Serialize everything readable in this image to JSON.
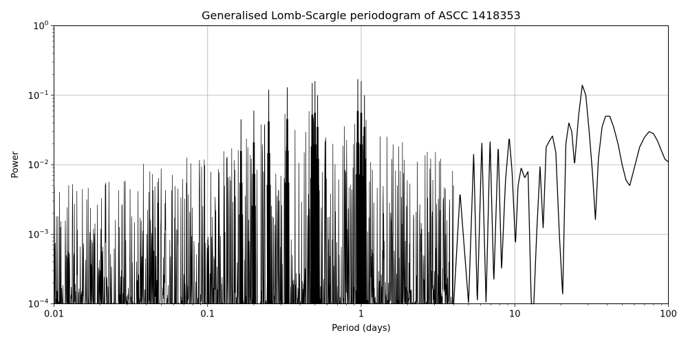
{
  "chart_data": {
    "type": "line",
    "title": "Generalised Lomb-Scargle periodogram of ASCC 1418353",
    "xlabel": "Period (days)",
    "ylabel": "Power",
    "xscale": "log",
    "yscale": "log",
    "xlim": [
      0.01,
      100
    ],
    "ylim": [
      0.0001,
      1
    ],
    "grid": true,
    "legend": "none",
    "line_color": "#000000",
    "grid_color": "#b0b0b0",
    "x_ticks": [
      {
        "value": 0.01,
        "label": "0.01"
      },
      {
        "value": 0.1,
        "label": "0.1"
      },
      {
        "value": 1,
        "label": "1"
      },
      {
        "value": 10,
        "label": "10"
      },
      {
        "value": 100,
        "label": "100"
      }
    ],
    "y_ticks": [
      {
        "value": 0.0001,
        "base": "10",
        "exp": "−4"
      },
      {
        "value": 0.001,
        "base": "10",
        "exp": "−3"
      },
      {
        "value": 0.01,
        "base": "10",
        "exp": "−2"
      },
      {
        "value": 0.1,
        "base": "10",
        "exp": "−1"
      },
      {
        "value": 1,
        "base": "10",
        "exp": "0"
      }
    ],
    "series": [
      {
        "style": "noisy-envelope",
        "x": [
          0.01,
          0.02,
          0.04,
          0.06,
          0.1,
          0.15,
          0.2,
          0.25,
          0.3,
          0.35,
          0.4,
          0.5,
          0.6,
          0.7,
          0.8,
          1.0,
          1.2,
          1.5,
          2.0,
          2.5,
          3.0,
          4.0
        ],
        "upper": [
          0.005,
          0.006,
          0.011,
          0.014,
          0.02,
          0.028,
          0.04,
          0.06,
          0.07,
          0.06,
          0.055,
          0.08,
          0.05,
          0.04,
          0.05,
          0.06,
          0.04,
          0.025,
          0.02,
          0.018,
          0.016,
          0.015
        ],
        "lower": [
          0.0001,
          0.0001,
          0.0001,
          0.0001,
          0.0001,
          0.0001,
          0.0001,
          0.0001,
          0.0001,
          0.0001,
          0.0001,
          0.0001,
          0.0001,
          0.0001,
          0.0001,
          0.0001,
          0.0001,
          0.0001,
          0.0001,
          0.0001,
          0.0001,
          0.0001
        ]
      },
      {
        "style": "peaks",
        "x": [
          0.165,
          0.2,
          0.25,
          0.33,
          0.48,
          0.5,
          0.52,
          0.95,
          1.0,
          1.05
        ],
        "y": [
          0.045,
          0.06,
          0.12,
          0.13,
          0.15,
          0.16,
          0.1,
          0.17,
          0.16,
          0.1
        ]
      },
      {
        "style": "line",
        "x": [
          4.0,
          4.4,
          5.0,
          5.4,
          5.7,
          6.1,
          6.5,
          6.9,
          7.3,
          7.8,
          8.2,
          8.7,
          9.2,
          9.6,
          10.1,
          10.5,
          11.0,
          11.6,
          12.2,
          12.8,
          13.3,
          13.9,
          14.6,
          15.3,
          16.0,
          16.8,
          17.6,
          18.5,
          19.5,
          20.5,
          21.5,
          22.5,
          23.5,
          24.5,
          26.0,
          27.5,
          29.0,
          30.5,
          32.0,
          33.5,
          35.0,
          37.0,
          39.0,
          41.5,
          44.0,
          47.0,
          50.0,
          53.0,
          56.0,
          60.0,
          65.0,
          70.0,
          75.0,
          80.0,
          85.0,
          90.0,
          95.0,
          100.0
        ],
        "y": [
          0.0001,
          0.004,
          0.0001,
          0.015,
          0.0001,
          0.022,
          0.0001,
          0.024,
          0.0002,
          0.02,
          0.0003,
          0.006,
          0.025,
          0.008,
          0.0007,
          0.005,
          0.009,
          0.0065,
          0.008,
          0.0001,
          0.0001,
          0.0011,
          0.0095,
          0.0012,
          0.018,
          0.022,
          0.026,
          0.015,
          0.001,
          0.00013,
          0.02,
          0.04,
          0.03,
          0.01,
          0.05,
          0.14,
          0.1,
          0.03,
          0.008,
          0.0016,
          0.012,
          0.035,
          0.05,
          0.05,
          0.035,
          0.02,
          0.01,
          0.006,
          0.005,
          0.009,
          0.018,
          0.025,
          0.03,
          0.028,
          0.022,
          0.016,
          0.012,
          0.011
        ]
      }
    ]
  }
}
